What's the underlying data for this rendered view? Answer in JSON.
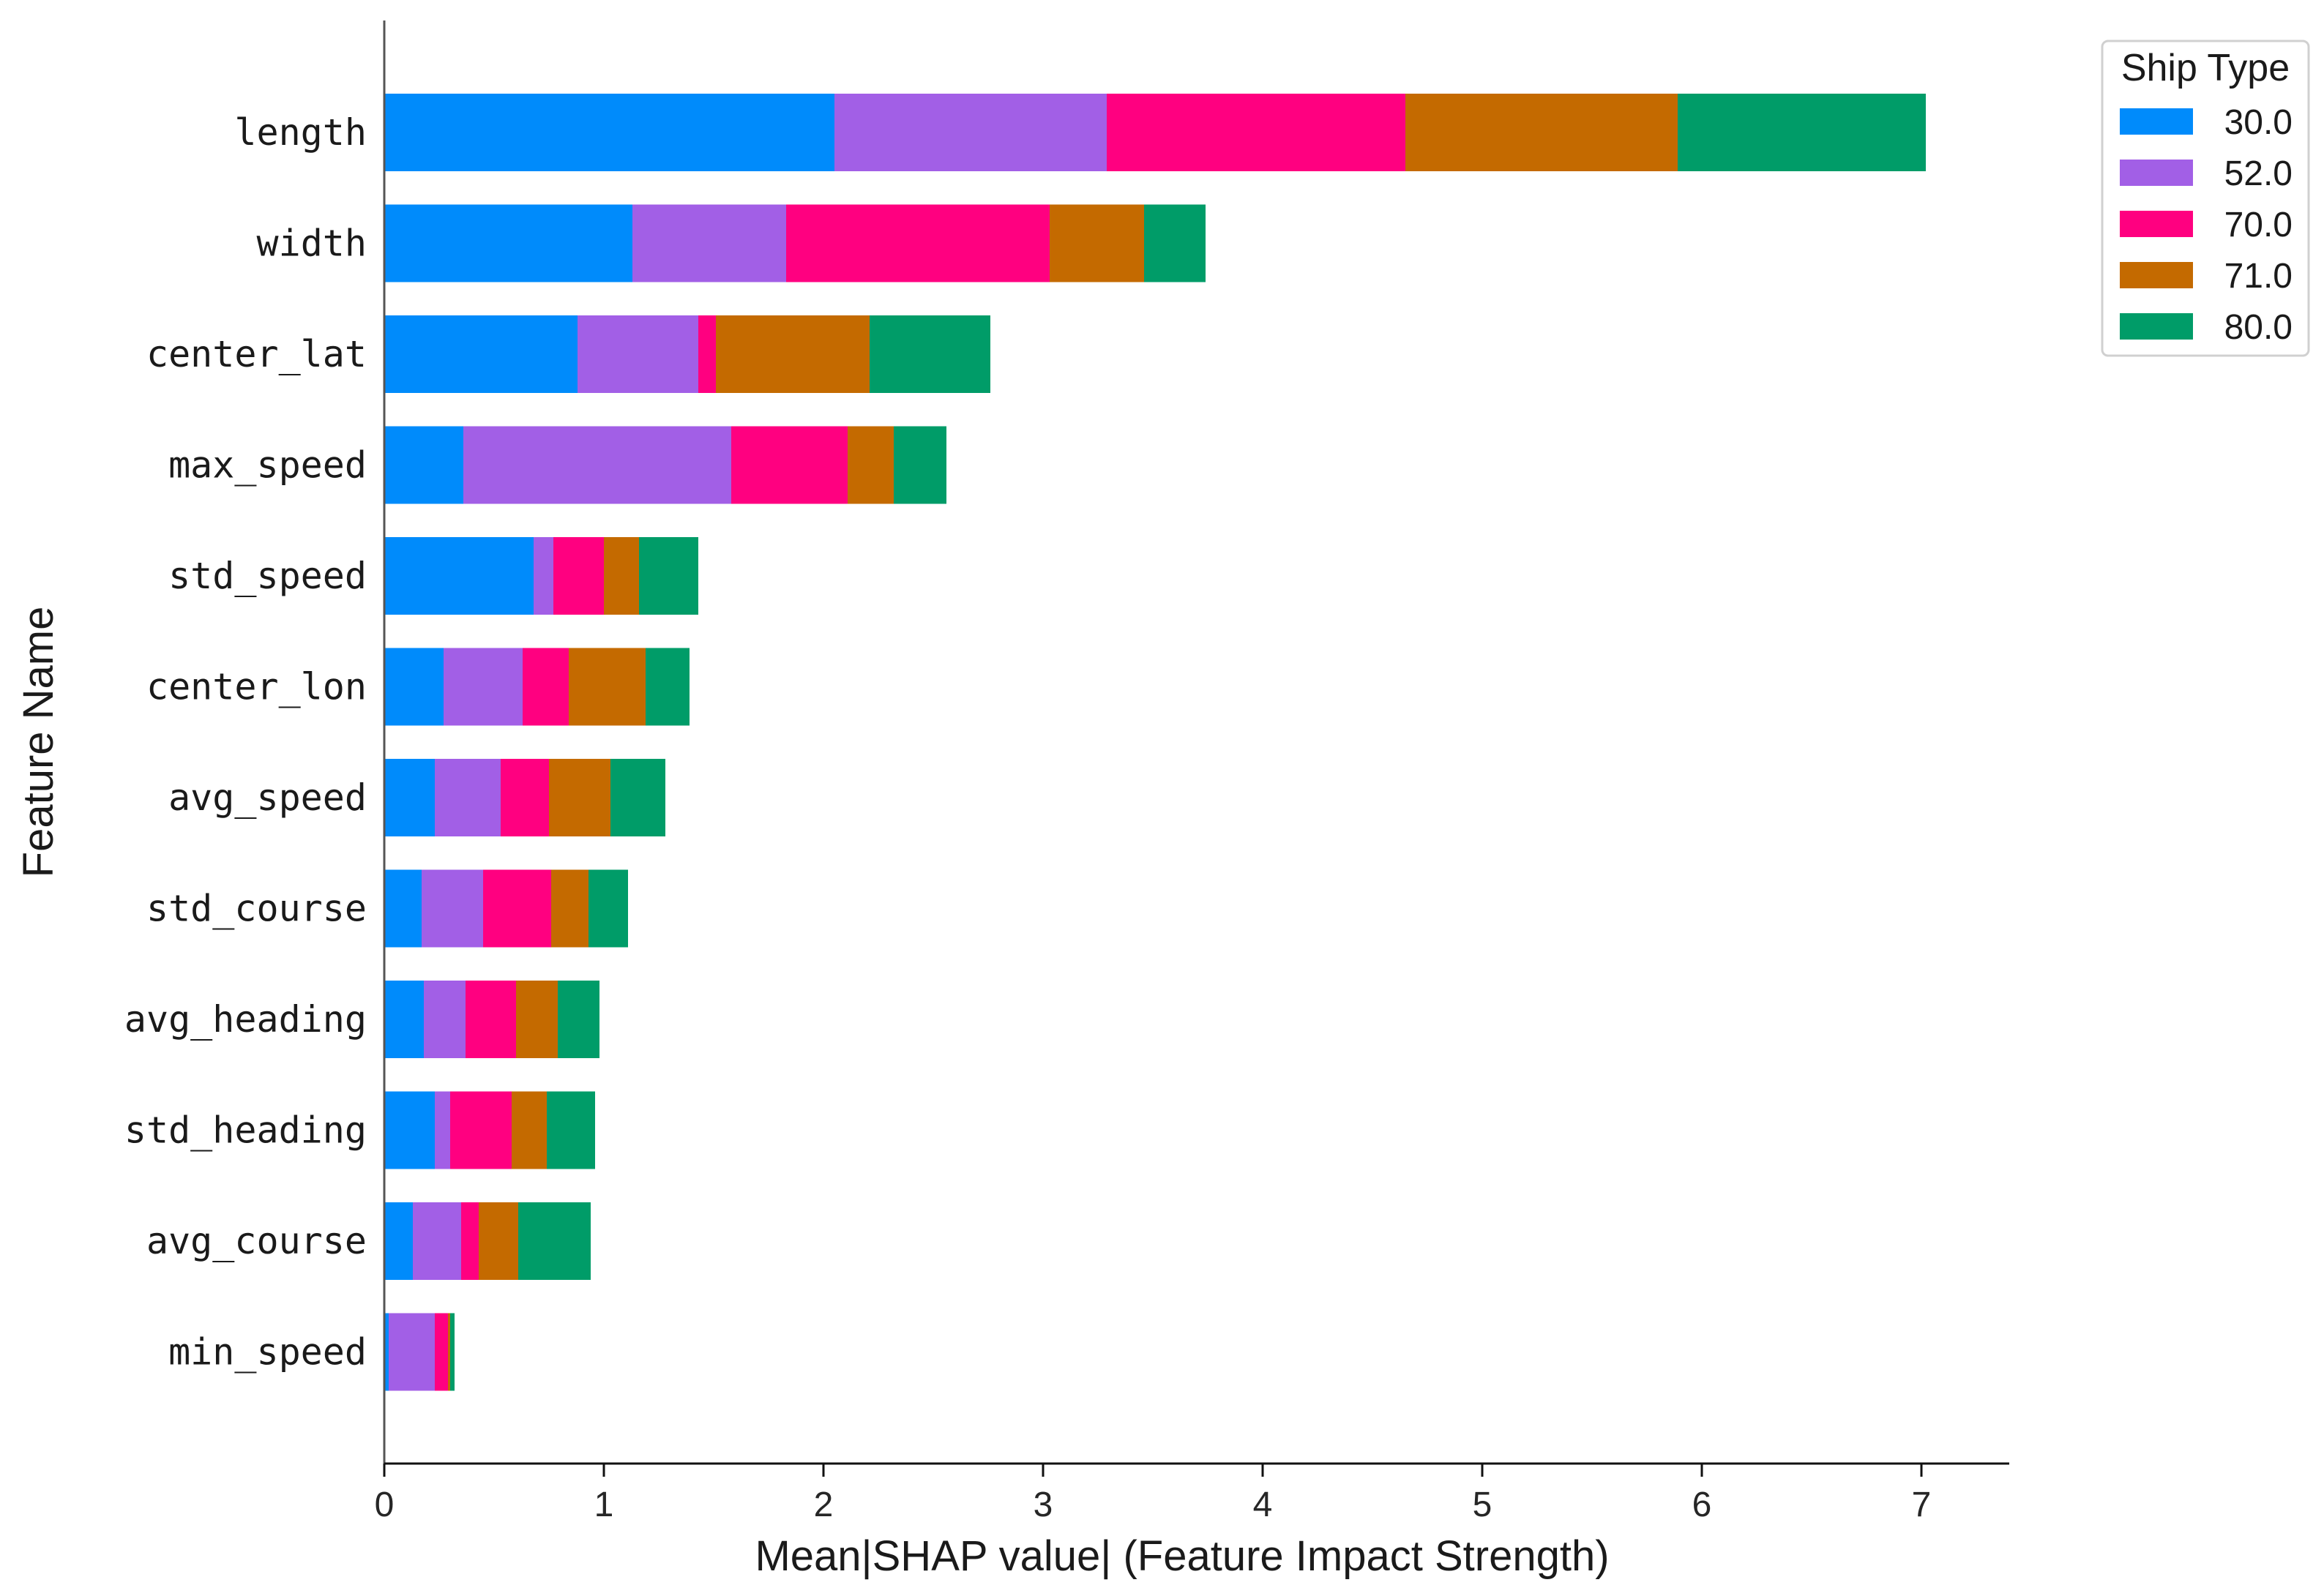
{
  "chart_data": {
    "type": "bar",
    "orientation": "horizontal",
    "stacked": true,
    "title": "",
    "xlabel": "Mean|SHAP value| (Feature Impact Strength)",
    "ylabel": "Feature Name",
    "xlim": [
      0,
      7.4
    ],
    "xticks": [
      "0",
      "1",
      "2",
      "3",
      "4",
      "5",
      "6",
      "7"
    ],
    "grid": false,
    "legend_position": "top-right",
    "legend_title": "Ship Type",
    "categories": [
      "length",
      "width",
      "center_lat",
      "max_speed",
      "std_speed",
      "center_lon",
      "avg_speed",
      "std_course",
      "avg_heading",
      "std_heading",
      "avg_course",
      "min_speed"
    ],
    "series": [
      {
        "name": "30.0",
        "color": "#008bfb",
        "values": [
          2.05,
          1.13,
          0.88,
          0.36,
          0.68,
          0.27,
          0.23,
          0.17,
          0.18,
          0.23,
          0.13,
          0.02
        ]
      },
      {
        "name": "52.0",
        "color": "#a25fe6",
        "values": [
          1.24,
          0.7,
          0.55,
          1.22,
          0.09,
          0.36,
          0.3,
          0.28,
          0.19,
          0.07,
          0.22,
          0.21
        ]
      },
      {
        "name": "70.0",
        "color": "#ff0080",
        "values": [
          1.36,
          1.2,
          0.08,
          0.53,
          0.23,
          0.21,
          0.22,
          0.31,
          0.23,
          0.28,
          0.08,
          0.06
        ]
      },
      {
        "name": "71.0",
        "color": "#c46a00",
        "values": [
          1.24,
          0.43,
          0.7,
          0.21,
          0.16,
          0.35,
          0.28,
          0.17,
          0.19,
          0.16,
          0.18,
          0.01
        ]
      },
      {
        "name": "80.0",
        "color": "#009c68",
        "values": [
          1.13,
          0.28,
          0.55,
          0.24,
          0.27,
          0.2,
          0.25,
          0.18,
          0.19,
          0.22,
          0.33,
          0.02
        ]
      }
    ]
  }
}
